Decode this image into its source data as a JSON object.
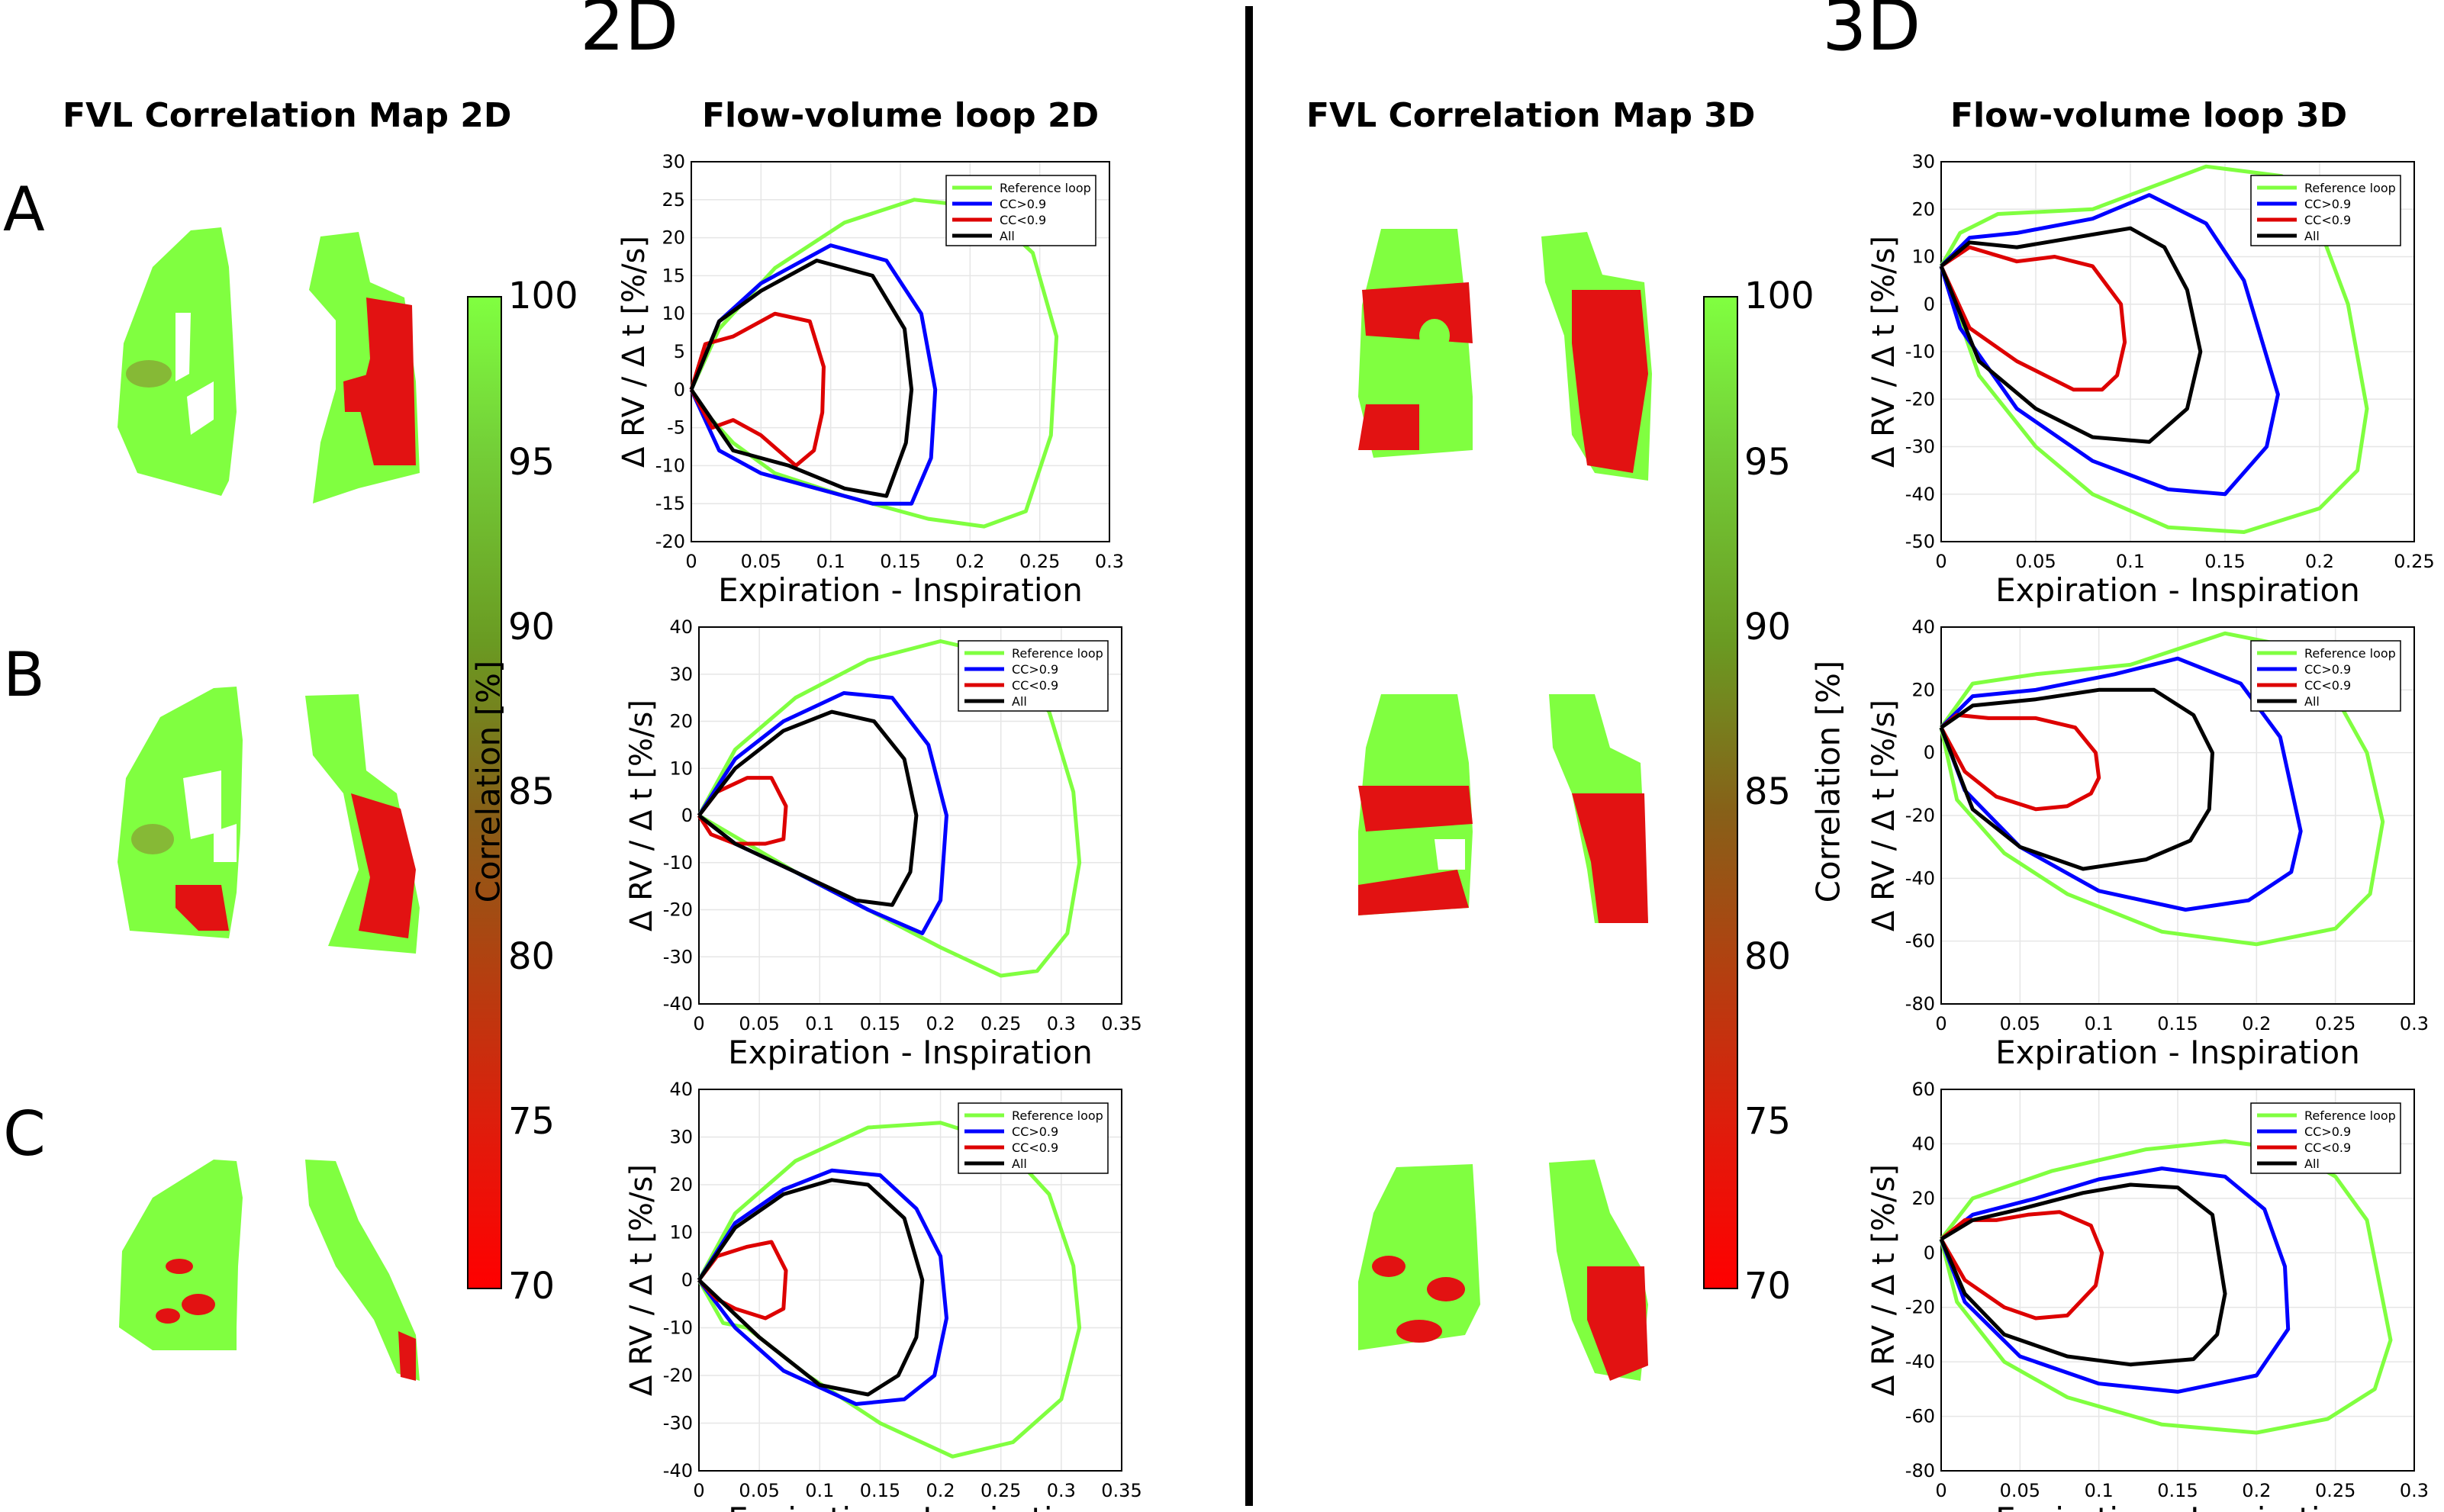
{
  "sections": {
    "left_title": "2D",
    "right_title": "3D"
  },
  "column_titles": {
    "map2d": "FVL Correlation Map 2D",
    "loop2d": "Flow-volume loop 2D",
    "map3d": "FVL Correlation Map 3D",
    "loop3d": "Flow-volume loop 3D"
  },
  "rows": [
    "A",
    "B",
    "C"
  ],
  "colorbar": {
    "label": "Correlation [%]",
    "ticks": [
      "100",
      "95",
      "90",
      "85",
      "80",
      "75",
      "70"
    ],
    "max_color": "#80ff40",
    "min_color": "#ff0000"
  },
  "legend": [
    "Reference loop",
    "CC>0.9",
    "CC<0.9",
    "All"
  ],
  "colors": {
    "reference": "#80ff40",
    "cc_high": "#0000ff",
    "cc_low": "#dd0000",
    "all": "#000000"
  },
  "chart_data": [
    {
      "id": "A2D",
      "type": "line",
      "xlabel": "Expiration - Inspiration",
      "ylabel": "Δ RV / Δ t [%/s]",
      "xlim": [
        0,
        0.3
      ],
      "ylim": [
        -20,
        30
      ],
      "xticks": [
        0,
        0.05,
        0.1,
        0.15,
        0.2,
        0.25,
        0.3
      ],
      "yticks": [
        -20,
        -15,
        -10,
        -5,
        0,
        5,
        10,
        15,
        20,
        25,
        30
      ],
      "xticklabels": [
        "0",
        "0.05",
        "0.1",
        "0.15",
        "0.2",
        "0.25",
        "0.3"
      ],
      "yticklabels": [
        "-20",
        "-15",
        "-10",
        "-5",
        "0",
        "5",
        "10",
        "15",
        "20",
        "25",
        "30"
      ],
      "series": [
        {
          "name": "Reference loop",
          "x": [
            0,
            0.02,
            0.06,
            0.11,
            0.16,
            0.21,
            0.245,
            0.262,
            0.258,
            0.24,
            0.21,
            0.17,
            0.11,
            0.06,
            0.03,
            0.01,
            0
          ],
          "y": [
            0,
            8,
            16,
            22,
            25,
            24,
            18,
            7,
            -6,
            -16,
            -18,
            -17,
            -14,
            -11,
            -7,
            -3,
            0
          ]
        },
        {
          "name": "CC>0.9",
          "x": [
            0,
            0.02,
            0.05,
            0.1,
            0.14,
            0.165,
            0.175,
            0.172,
            0.158,
            0.13,
            0.09,
            0.05,
            0.02,
            0
          ],
          "y": [
            0,
            9,
            14,
            19,
            17,
            10,
            0,
            -9,
            -15,
            -15,
            -13,
            -11,
            -8,
            0
          ]
        },
        {
          "name": "CC<0.9",
          "x": [
            0,
            0.01,
            0.03,
            0.06,
            0.085,
            0.095,
            0.094,
            0.088,
            0.075,
            0.05,
            0.03,
            0.015,
            0
          ],
          "y": [
            0,
            6,
            7,
            10,
            9,
            3,
            -3,
            -8,
            -10,
            -6,
            -4,
            -5,
            0
          ]
        },
        {
          "name": "All",
          "x": [
            0,
            0.02,
            0.05,
            0.09,
            0.13,
            0.153,
            0.158,
            0.154,
            0.14,
            0.11,
            0.07,
            0.03,
            0
          ],
          "y": [
            0,
            9,
            13,
            17,
            15,
            8,
            0,
            -7,
            -14,
            -13,
            -10,
            -8,
            0
          ]
        }
      ]
    },
    {
      "id": "B2D",
      "type": "line",
      "xlabel": "Expiration - Inspiration",
      "ylabel": "Δ RV / Δ t [%/s]",
      "xlim": [
        0,
        0.35
      ],
      "ylim": [
        -40,
        40
      ],
      "xticks": [
        0,
        0.05,
        0.1,
        0.15,
        0.2,
        0.25,
        0.3,
        0.35
      ],
      "yticks": [
        -40,
        -30,
        -20,
        -10,
        0,
        10,
        20,
        30,
        40
      ],
      "xticklabels": [
        "0",
        "0.05",
        "0.1",
        "0.15",
        "0.2",
        "0.25",
        "0.3",
        "0.35"
      ],
      "yticklabels": [
        "-40",
        "-30",
        "-20",
        "-10",
        "0",
        "10",
        "20",
        "30",
        "40"
      ],
      "series": [
        {
          "name": "Reference loop",
          "x": [
            0,
            0.03,
            0.08,
            0.14,
            0.2,
            0.25,
            0.29,
            0.31,
            0.315,
            0.305,
            0.28,
            0.25,
            0.2,
            0.14,
            0.08,
            0.04,
            0
          ],
          "y": [
            0,
            14,
            25,
            33,
            37,
            34,
            22,
            5,
            -10,
            -25,
            -33,
            -34,
            -28,
            -20,
            -12,
            -6,
            0
          ]
        },
        {
          "name": "CC>0.9",
          "x": [
            0,
            0.03,
            0.07,
            0.12,
            0.16,
            0.19,
            0.205,
            0.2,
            0.185,
            0.14,
            0.08,
            0.03,
            0
          ],
          "y": [
            0,
            12,
            20,
            26,
            25,
            15,
            0,
            -18,
            -25,
            -20,
            -12,
            -6,
            0
          ]
        },
        {
          "name": "CC<0.9",
          "x": [
            0,
            0.015,
            0.04,
            0.06,
            0.072,
            0.07,
            0.055,
            0.03,
            0.01,
            0
          ],
          "y": [
            0,
            5,
            8,
            8,
            2,
            -5,
            -6,
            -6,
            -4,
            0
          ]
        },
        {
          "name": "All",
          "x": [
            0,
            0.03,
            0.07,
            0.11,
            0.145,
            0.17,
            0.18,
            0.175,
            0.16,
            0.13,
            0.08,
            0.03,
            0
          ],
          "y": [
            0,
            10,
            18,
            22,
            20,
            12,
            0,
            -12,
            -19,
            -18,
            -12,
            -6,
            0
          ]
        }
      ]
    },
    {
      "id": "C2D",
      "type": "line",
      "xlabel": "Expiration - Inspiration",
      "ylabel": "Δ RV / Δ t [%/s]",
      "xlim": [
        0,
        0.35
      ],
      "ylim": [
        -40,
        40
      ],
      "xticks": [
        0,
        0.05,
        0.1,
        0.15,
        0.2,
        0.25,
        0.3,
        0.35
      ],
      "yticks": [
        -40,
        -30,
        -20,
        -10,
        0,
        10,
        20,
        30,
        40
      ],
      "xticklabels": [
        "0",
        "0.05",
        "0.1",
        "0.15",
        "0.2",
        "0.25",
        "0.3",
        "0.35"
      ],
      "yticklabels": [
        "-40",
        "-30",
        "-20",
        "-10",
        "0",
        "10",
        "20",
        "30",
        "40"
      ],
      "series": [
        {
          "name": "Reference loop",
          "x": [
            0,
            0.03,
            0.08,
            0.14,
            0.2,
            0.25,
            0.29,
            0.31,
            0.315,
            0.3,
            0.26,
            0.21,
            0.15,
            0.09,
            0.04,
            0.02,
            0
          ],
          "y": [
            0,
            14,
            25,
            32,
            33,
            29,
            18,
            3,
            -10,
            -25,
            -34,
            -37,
            -30,
            -20,
            -10,
            -9,
            0
          ]
        },
        {
          "name": "CC>0.9",
          "x": [
            0,
            0.03,
            0.07,
            0.11,
            0.15,
            0.18,
            0.2,
            0.205,
            0.195,
            0.17,
            0.13,
            0.07,
            0.03,
            0
          ],
          "y": [
            0,
            12,
            19,
            23,
            22,
            15,
            5,
            -8,
            -20,
            -25,
            -26,
            -19,
            -10,
            0
          ]
        },
        {
          "name": "CC<0.9",
          "x": [
            0,
            0.015,
            0.04,
            0.06,
            0.072,
            0.07,
            0.055,
            0.03,
            0.015,
            0
          ],
          "y": [
            0,
            5,
            7,
            8,
            2,
            -6,
            -8,
            -6,
            -4,
            0
          ]
        },
        {
          "name": "All",
          "x": [
            0,
            0.03,
            0.07,
            0.11,
            0.14,
            0.17,
            0.185,
            0.18,
            0.165,
            0.14,
            0.1,
            0.05,
            0
          ],
          "y": [
            0,
            11,
            18,
            21,
            20,
            13,
            0,
            -12,
            -20,
            -24,
            -22,
            -12,
            0
          ]
        }
      ]
    },
    {
      "id": "A3D",
      "type": "line",
      "xlabel": "Expiration - Inspiration",
      "ylabel": "Δ RV / Δ t [%/s]",
      "xlim": [
        0,
        0.25
      ],
      "ylim": [
        -50,
        30
      ],
      "xticks": [
        0,
        0.05,
        0.1,
        0.15,
        0.2,
        0.25
      ],
      "yticks": [
        -50,
        -40,
        -30,
        -20,
        -10,
        0,
        10,
        20,
        30
      ],
      "xticklabels": [
        "0",
        "0.05",
        "0.1",
        "0.15",
        "0.2",
        "0.25"
      ],
      "yticklabels": [
        "-50",
        "-40",
        "-30",
        "-20",
        "-10",
        "0",
        "10",
        "20",
        "30"
      ],
      "series": [
        {
          "name": "Reference loop",
          "x": [
            0,
            0.01,
            0.03,
            0.08,
            0.14,
            0.18,
            0.2,
            0.215,
            0.225,
            0.22,
            0.2,
            0.16,
            0.12,
            0.08,
            0.05,
            0.02,
            0
          ],
          "y": [
            8,
            15,
            19,
            20,
            29,
            27,
            16,
            0,
            -22,
            -35,
            -43,
            -48,
            -47,
            -40,
            -30,
            -15,
            8
          ]
        },
        {
          "name": "CC>0.9",
          "x": [
            0,
            0.015,
            0.04,
            0.08,
            0.11,
            0.14,
            0.16,
            0.178,
            0.172,
            0.15,
            0.12,
            0.08,
            0.04,
            0.01,
            0
          ],
          "y": [
            8,
            14,
            15,
            18,
            23,
            17,
            5,
            -19,
            -30,
            -40,
            -39,
            -33,
            -22,
            -5,
            8
          ]
        },
        {
          "name": "CC<0.9",
          "x": [
            0,
            0.015,
            0.04,
            0.06,
            0.08,
            0.095,
            0.097,
            0.093,
            0.085,
            0.07,
            0.04,
            0.015,
            0
          ],
          "y": [
            8,
            12,
            9,
            10,
            8,
            0,
            -8,
            -15,
            -18,
            -18,
            -12,
            -5,
            8
          ]
        },
        {
          "name": "All",
          "x": [
            0,
            0.015,
            0.04,
            0.07,
            0.1,
            0.118,
            0.13,
            0.137,
            0.13,
            0.11,
            0.08,
            0.05,
            0.02,
            0
          ],
          "y": [
            8,
            13,
            12,
            14,
            16,
            12,
            3,
            -10,
            -22,
            -29,
            -28,
            -22,
            -12,
            8
          ]
        }
      ]
    },
    {
      "id": "B3D",
      "type": "line",
      "xlabel": "Expiration - Inspiration",
      "ylabel": "Δ RV / Δ t [%/s]",
      "xlim": [
        0,
        0.3
      ],
      "ylim": [
        -80,
        40
      ],
      "xticks": [
        0,
        0.05,
        0.1,
        0.15,
        0.2,
        0.25,
        0.3
      ],
      "yticks": [
        -80,
        -60,
        -40,
        -20,
        0,
        20,
        40
      ],
      "xticklabels": [
        "0",
        "0.05",
        "0.1",
        "0.15",
        "0.2",
        "0.25",
        "0.3"
      ],
      "yticklabels": [
        "-80",
        "-60",
        "-40",
        "-20",
        "0",
        "20",
        "40"
      ],
      "series": [
        {
          "name": "Reference loop",
          "x": [
            0,
            0.02,
            0.06,
            0.12,
            0.18,
            0.22,
            0.25,
            0.27,
            0.28,
            0.272,
            0.25,
            0.2,
            0.14,
            0.08,
            0.04,
            0.01,
            0
          ],
          "y": [
            8,
            22,
            25,
            28,
            38,
            34,
            18,
            0,
            -22,
            -45,
            -56,
            -61,
            -57,
            -45,
            -32,
            -15,
            8
          ]
        },
        {
          "name": "CC>0.9",
          "x": [
            0,
            0.02,
            0.06,
            0.11,
            0.15,
            0.19,
            0.215,
            0.228,
            0.222,
            0.195,
            0.155,
            0.1,
            0.05,
            0.015,
            0
          ],
          "y": [
            8,
            18,
            20,
            25,
            30,
            22,
            5,
            -25,
            -38,
            -47,
            -50,
            -44,
            -30,
            -12,
            8
          ]
        },
        {
          "name": "CC<0.9",
          "x": [
            0,
            0.01,
            0.03,
            0.06,
            0.085,
            0.098,
            0.1,
            0.095,
            0.08,
            0.06,
            0.035,
            0.015,
            0
          ],
          "y": [
            8,
            12,
            11,
            11,
            8,
            0,
            -8,
            -13,
            -17,
            -18,
            -14,
            -6,
            8
          ]
        },
        {
          "name": "All",
          "x": [
            0,
            0.02,
            0.06,
            0.1,
            0.135,
            0.16,
            0.172,
            0.17,
            0.158,
            0.13,
            0.09,
            0.05,
            0.02,
            0
          ],
          "y": [
            8,
            15,
            17,
            20,
            20,
            12,
            0,
            -18,
            -28,
            -34,
            -37,
            -30,
            -18,
            8
          ]
        }
      ]
    },
    {
      "id": "C3D",
      "type": "line",
      "xlabel": "Expiration - Inspiration",
      "ylabel": "Δ RV / Δ t [%/s]",
      "xlim": [
        0,
        0.3
      ],
      "ylim": [
        -80,
        60
      ],
      "xticks": [
        0,
        0.05,
        0.1,
        0.15,
        0.2,
        0.25,
        0.3
      ],
      "yticks": [
        -80,
        -60,
        -40,
        -20,
        0,
        20,
        40,
        60
      ],
      "xticklabels": [
        "0",
        "0.05",
        "0.1",
        "0.15",
        "0.2",
        "0.25",
        "0.3"
      ],
      "yticklabels": [
        "-80",
        "-60",
        "-40",
        "-20",
        "0",
        "20",
        "40",
        "60"
      ],
      "series": [
        {
          "name": "Reference loop",
          "x": [
            0,
            0.02,
            0.07,
            0.13,
            0.18,
            0.22,
            0.25,
            0.27,
            0.285,
            0.275,
            0.245,
            0.2,
            0.14,
            0.08,
            0.04,
            0.01,
            0
          ],
          "y": [
            5,
            20,
            30,
            38,
            41,
            38,
            28,
            12,
            -32,
            -50,
            -61,
            -66,
            -63,
            -53,
            -40,
            -18,
            5
          ]
        },
        {
          "name": "CC>0.9",
          "x": [
            0,
            0.02,
            0.06,
            0.1,
            0.14,
            0.18,
            0.205,
            0.218,
            0.22,
            0.2,
            0.15,
            0.1,
            0.05,
            0.015,
            0
          ],
          "y": [
            5,
            14,
            20,
            27,
            31,
            28,
            16,
            -5,
            -28,
            -45,
            -51,
            -48,
            -38,
            -18,
            5
          ]
        },
        {
          "name": "CC<0.9",
          "x": [
            0,
            0.015,
            0.035,
            0.055,
            0.075,
            0.095,
            0.102,
            0.098,
            0.08,
            0.06,
            0.04,
            0.015,
            0
          ],
          "y": [
            5,
            12,
            12,
            14,
            15,
            10,
            0,
            -12,
            -23,
            -24,
            -20,
            -10,
            5
          ]
        },
        {
          "name": "All",
          "x": [
            0,
            0.02,
            0.05,
            0.09,
            0.12,
            0.15,
            0.172,
            0.18,
            0.175,
            0.16,
            0.12,
            0.08,
            0.04,
            0.015,
            0
          ],
          "y": [
            5,
            12,
            16,
            22,
            25,
            24,
            14,
            -15,
            -30,
            -39,
            -41,
            -38,
            -30,
            -15,
            5
          ]
        }
      ]
    }
  ]
}
